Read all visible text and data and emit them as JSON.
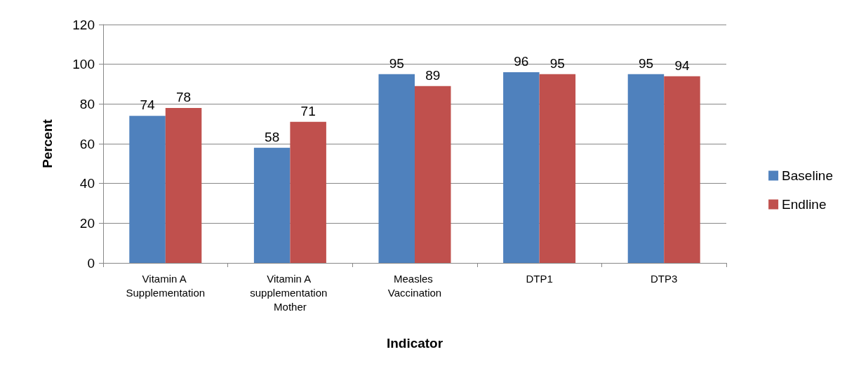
{
  "chart_data": {
    "type": "bar",
    "xlabel": "Indicator",
    "ylabel": "Percent",
    "categories": [
      "Vitamin A Supplementation",
      "Vitamin A supplementation Mother",
      "Measles Vaccination",
      "DTP1",
      "DTP3"
    ],
    "series": [
      {
        "name": "Baseline",
        "color": "#4f81bd",
        "values": [
          74,
          58,
          95,
          96,
          95
        ]
      },
      {
        "name": "Endline",
        "color": "#c0504d",
        "values": [
          78,
          71,
          89,
          95,
          94
        ]
      }
    ],
    "ylim": [
      0,
      120
    ],
    "yticks": [
      0,
      20,
      40,
      60,
      80,
      100,
      120
    ],
    "grid": "y",
    "legend": "right",
    "data_labels": true
  }
}
